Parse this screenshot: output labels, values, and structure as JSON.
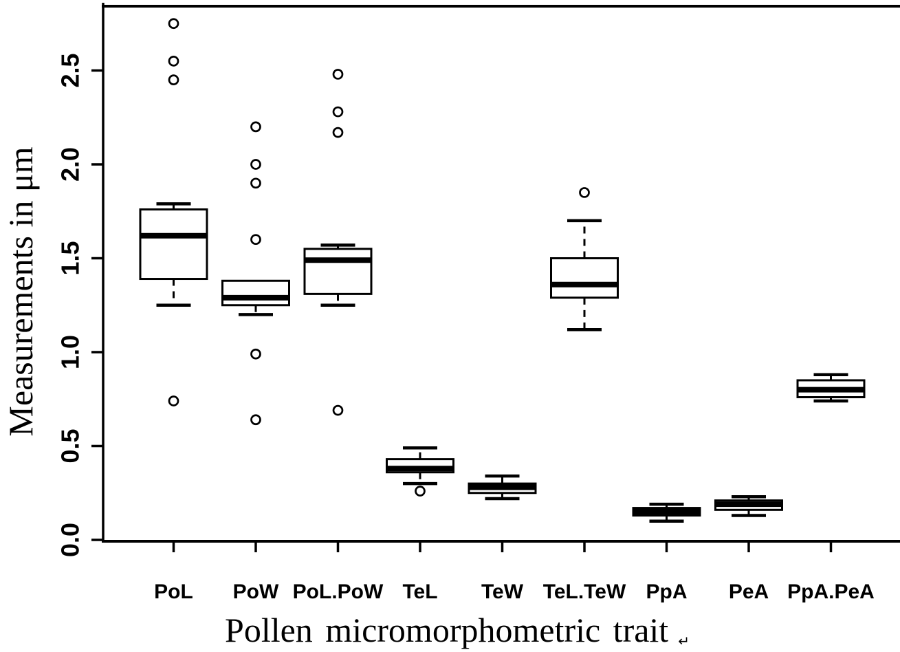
{
  "figure": {
    "background": "#ffffff",
    "ink_color": "#000000"
  },
  "chart_data": {
    "type": "boxplot",
    "title": "",
    "xlabel": "Pollen micromorphometric trait",
    "ylabel": "Measurements in μm",
    "after_title_mark": "↵",
    "grid": false,
    "legend": null,
    "ylim": [
      0,
      2.85
    ],
    "yticks": [
      0.0,
      0.5,
      1.0,
      1.5,
      2.0,
      2.5
    ],
    "ytick_labels": [
      "0.0",
      "0.5",
      "1.0",
      "1.5",
      "2.0",
      "2.5"
    ],
    "categories": [
      "PoL",
      "PoW",
      "PoL.PoW",
      "TeL",
      "TeW",
      "TeL.TeW",
      "PpA",
      "PeA",
      "PpA.PeA"
    ],
    "series": [
      {
        "name": "PoL",
        "whisker_low": 1.25,
        "q1": 1.39,
        "median": 1.62,
        "q3": 1.76,
        "whisker_high": 1.79,
        "outliers": [
          0.74,
          2.45,
          2.55,
          2.75
        ]
      },
      {
        "name": "PoW",
        "whisker_low": 1.2,
        "q1": 1.25,
        "median": 1.29,
        "q3": 1.38,
        "whisker_high": 1.38,
        "outliers": [
          0.64,
          0.99,
          1.6,
          1.9,
          2.0,
          2.2
        ]
      },
      {
        "name": "PoL.PoW",
        "whisker_low": 1.25,
        "q1": 1.31,
        "median": 1.49,
        "q3": 1.55,
        "whisker_high": 1.57,
        "outliers": [
          0.69,
          2.17,
          2.28,
          2.48
        ]
      },
      {
        "name": "TeL",
        "whisker_low": 0.3,
        "q1": 0.36,
        "median": 0.38,
        "q3": 0.43,
        "whisker_high": 0.49,
        "outliers": [
          0.26
        ]
      },
      {
        "name": "TeW",
        "whisker_low": 0.22,
        "q1": 0.25,
        "median": 0.28,
        "q3": 0.3,
        "whisker_high": 0.34,
        "outliers": []
      },
      {
        "name": "TeL.TeW",
        "whisker_low": 1.12,
        "q1": 1.29,
        "median": 1.36,
        "q3": 1.5,
        "whisker_high": 1.7,
        "outliers": [
          1.85
        ]
      },
      {
        "name": "PpA",
        "whisker_low": 0.1,
        "q1": 0.13,
        "median": 0.15,
        "q3": 0.17,
        "whisker_high": 0.19,
        "outliers": []
      },
      {
        "name": "PeA",
        "whisker_low": 0.13,
        "q1": 0.16,
        "median": 0.19,
        "q3": 0.21,
        "whisker_high": 0.23,
        "outliers": []
      },
      {
        "name": "PpA.PeA",
        "whisker_low": 0.74,
        "q1": 0.76,
        "median": 0.8,
        "q3": 0.85,
        "whisker_high": 0.88,
        "outliers": []
      }
    ]
  }
}
